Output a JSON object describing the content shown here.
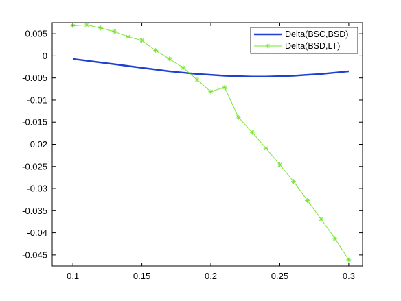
{
  "chart_data": {
    "type": "line",
    "title": "",
    "xlabel": "",
    "ylabel": "",
    "xlim": [
      0.085,
      0.31
    ],
    "ylim": [
      -0.0475,
      0.0075
    ],
    "xticks": [
      0.1,
      0.15,
      0.2,
      0.25,
      0.3
    ],
    "xtick_labels": [
      "0.1",
      "0.15",
      "0.2",
      "0.25",
      "0.3"
    ],
    "yticks": [
      0.005,
      0,
      -0.005,
      -0.01,
      -0.015,
      -0.02,
      -0.025,
      -0.03,
      -0.035,
      -0.04,
      -0.045
    ],
    "ytick_labels": [
      "0.005",
      "0",
      "-0.005",
      "-0.01",
      "-0.015",
      "-0.02",
      "-0.025",
      "-0.03",
      "-0.035",
      "-0.04",
      "-0.045"
    ],
    "grid": false,
    "legend_position": "top-right",
    "series": [
      {
        "name": "Delta(BSC,BSD)",
        "color": "#2040d0",
        "marker": "none",
        "x": [
          0.1,
          0.11,
          0.12,
          0.13,
          0.14,
          0.15,
          0.16,
          0.17,
          0.18,
          0.19,
          0.2,
          0.21,
          0.22,
          0.23,
          0.24,
          0.25,
          0.26,
          0.27,
          0.28,
          0.29,
          0.3
        ],
        "y": [
          -0.0007,
          -0.0011,
          -0.0015,
          -0.0019,
          -0.0023,
          -0.0027,
          -0.0031,
          -0.0035,
          -0.0038,
          -0.0041,
          -0.0043,
          -0.0045,
          -0.0046,
          -0.0047,
          -0.0047,
          -0.0046,
          -0.0045,
          -0.0043,
          -0.0041,
          -0.0038,
          -0.0035
        ]
      },
      {
        "name": "Delta(BSD,LT)",
        "color": "#77e630",
        "marker": "asterisk",
        "x": [
          0.1,
          0.11,
          0.12,
          0.13,
          0.14,
          0.15,
          0.16,
          0.17,
          0.18,
          0.19,
          0.2,
          0.21,
          0.22,
          0.23,
          0.24,
          0.25,
          0.26,
          0.27,
          0.28,
          0.29,
          0.3
        ],
        "y": [
          0.0068,
          0.007,
          0.0063,
          0.0055,
          0.0043,
          0.0035,
          0.0012,
          -0.0007,
          -0.0027,
          -0.0054,
          -0.0081,
          -0.0071,
          -0.0139,
          -0.0173,
          -0.0209,
          -0.0246,
          -0.0284,
          -0.0327,
          -0.0369,
          -0.0413,
          -0.0461
        ]
      }
    ]
  }
}
